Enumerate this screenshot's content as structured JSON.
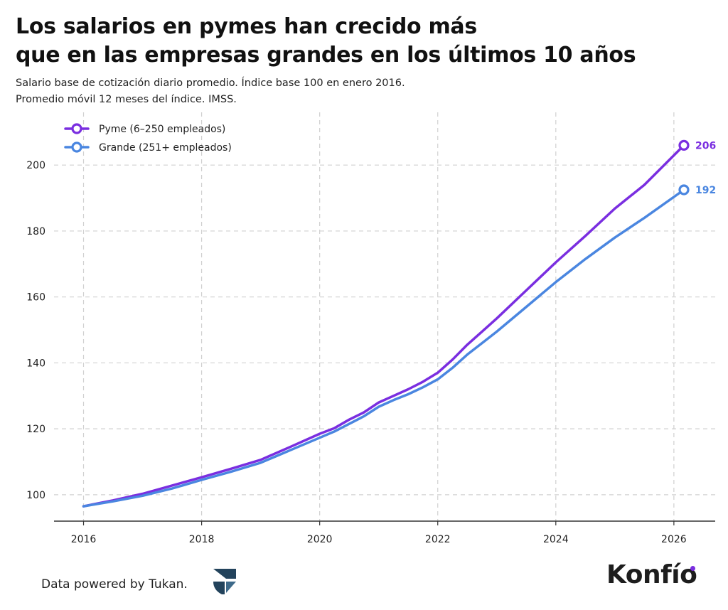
{
  "header": {
    "title_line1": "Los salarios en pymes han crecido más",
    "title_line2": "que en las empresas grandes en los últimos 10 años",
    "subtitle_line1": "Salario base de cotización diario promedio. Índice base 100 en enero 2016.",
    "subtitle_line2": "Promedio móvil 12 meses del índice. IMSS."
  },
  "footer": {
    "credit": "Data powered by Tukan.",
    "brand": "Konfío"
  },
  "icons": {
    "tukan_logo": "tukan-logo-icon",
    "brand_dot": "konfio-dot-icon"
  },
  "colors": {
    "pyme": "#7a2ee0",
    "grande": "#4a86e0",
    "grid": "#d0d0d0",
    "brand_dot": "#7a2ee0"
  },
  "chart_data": {
    "type": "line",
    "title": "Los salarios en pymes han crecido más que en las empresas grandes en los últimos 10 años",
    "subtitle": "Salario base de cotización diario promedio. Índice base 100 en enero 2016. Promedio móvil 12 meses del índice. IMSS.",
    "xlabel": "",
    "ylabel": "",
    "xlim": [
      2015.5,
      2026.7
    ],
    "ylim": [
      92,
      216
    ],
    "xticks": [
      2016,
      2018,
      2020,
      2022,
      2024,
      2026
    ],
    "yticks": [
      100,
      120,
      140,
      160,
      180,
      200
    ],
    "grid": true,
    "legend_position": "top-left",
    "series": [
      {
        "name": "Pyme (6–250 empleados)",
        "color": "#7a2ee0",
        "end_label": "206",
        "x": [
          2016.0,
          2016.5,
          2017.0,
          2017.5,
          2018.0,
          2018.5,
          2019.0,
          2019.5,
          2020.0,
          2020.25,
          2020.5,
          2020.75,
          2021.0,
          2021.25,
          2021.5,
          2021.75,
          2022.0,
          2022.25,
          2022.5,
          2022.75,
          2023.0,
          2023.5,
          2024.0,
          2024.5,
          2025.0,
          2025.5,
          2026.17
        ],
        "values": [
          96.5,
          98.3,
          100.3,
          102.8,
          105.3,
          107.9,
          110.6,
          114.5,
          118.5,
          120.2,
          122.8,
          125.0,
          128.0,
          130.0,
          132.0,
          134.3,
          137.0,
          141.0,
          145.5,
          149.5,
          153.5,
          162.0,
          170.5,
          178.5,
          186.8,
          194.0,
          206.0
        ]
      },
      {
        "name": "Grande (251+ empleados)",
        "color": "#4a86e0",
        "end_label": "192",
        "x": [
          2016.0,
          2016.5,
          2017.0,
          2017.5,
          2018.0,
          2018.5,
          2019.0,
          2019.5,
          2020.0,
          2020.25,
          2020.5,
          2020.75,
          2021.0,
          2021.25,
          2021.5,
          2021.75,
          2022.0,
          2022.25,
          2022.5,
          2022.75,
          2023.0,
          2023.5,
          2024.0,
          2024.5,
          2025.0,
          2025.5,
          2026.17
        ],
        "values": [
          96.5,
          98.0,
          99.7,
          101.9,
          104.5,
          107.0,
          109.7,
          113.5,
          117.3,
          119.2,
          121.5,
          123.8,
          126.7,
          128.7,
          130.5,
          132.6,
          135.0,
          138.5,
          142.5,
          146.0,
          149.5,
          157.0,
          164.5,
          171.5,
          178.0,
          184.0,
          192.5
        ]
      }
    ]
  }
}
